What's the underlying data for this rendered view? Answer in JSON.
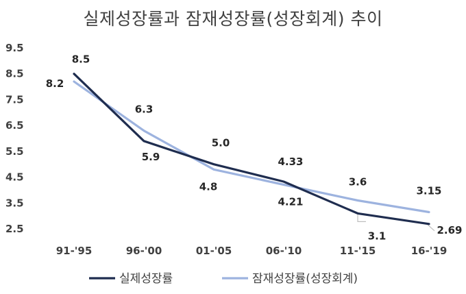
{
  "chart_data": {
    "type": "line",
    "title": "실제성장률과 잠재성장률(성장회계) 추이",
    "xlabel": "",
    "ylabel": "",
    "categories": [
      "91-'95",
      "96-'00",
      "01-'05",
      "06-'10",
      "11-'15",
      "16-'19"
    ],
    "ylim": [
      2.5,
      9.5
    ],
    "yticks": [
      "9.5",
      "8.5",
      "7.5",
      "6.5",
      "5.5",
      "4.5",
      "3.5",
      "2.5"
    ],
    "grid": false,
    "legend_position": "bottom",
    "series": [
      {
        "name": "실제성장률",
        "color": "#1f2d4f",
        "values": [
          8.5,
          5.9,
          5.0,
          4.33,
          3.1,
          2.69
        ],
        "labels": [
          "8.5",
          "5.9",
          "5.0",
          "4.33",
          "3.1",
          "2.69"
        ]
      },
      {
        "name": "잠재성장률(성장회계)",
        "color": "#9db3df",
        "values": [
          8.2,
          6.3,
          4.8,
          4.21,
          3.6,
          3.15
        ],
        "labels": [
          "8.2",
          "6.3",
          "4.8",
          "4.21",
          "3.6",
          "3.15"
        ]
      }
    ]
  }
}
